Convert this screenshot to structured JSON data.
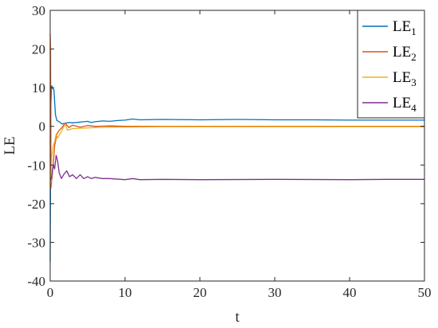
{
  "chart_data": {
    "type": "line",
    "xlabel": "t",
    "ylabel": "LE",
    "xlim": [
      0,
      50
    ],
    "ylim": [
      -40,
      30
    ],
    "xticks": [
      0,
      10,
      20,
      30,
      40,
      50
    ],
    "yticks": [
      30,
      20,
      10,
      0,
      -10,
      -20,
      -30,
      -40
    ],
    "grid": false,
    "legend_position": "top-right",
    "series": [
      {
        "name": "LE",
        "subscript": "1",
        "color": "#0072BD",
        "x": [
          0,
          0.1,
          0.2,
          0.3,
          0.5,
          0.7,
          0.9,
          1.2,
          1.6,
          2.0,
          2.5,
          3,
          4,
          5,
          5.5,
          6,
          7,
          8,
          9,
          10,
          11,
          12,
          15,
          20,
          25,
          30,
          35,
          40,
          45,
          50
        ],
        "y": [
          -35,
          6,
          10.5,
          10,
          9.5,
          3,
          1.5,
          1.2,
          0.6,
          0.8,
          1.0,
          0.9,
          1.1,
          1.3,
          1.0,
          1.2,
          1.4,
          1.3,
          1.5,
          1.6,
          1.9,
          1.7,
          1.8,
          1.7,
          1.8,
          1.7,
          1.7,
          1.6,
          1.6,
          1.6
        ]
      },
      {
        "name": "LE",
        "subscript": "2",
        "color": "#D95319",
        "x": [
          0,
          0.05,
          0.1,
          0.2,
          0.4,
          0.6,
          0.9,
          1.2,
          1.5,
          2.0,
          2.5,
          3,
          4,
          5,
          6,
          8,
          10,
          15,
          20,
          30,
          40,
          50
        ],
        "y": [
          24,
          20,
          -16,
          -14,
          -10,
          -5,
          -2,
          -1,
          -0.5,
          0.8,
          -0.3,
          0.3,
          -0.2,
          0.2,
          0.0,
          0.1,
          0.0,
          0.0,
          0.0,
          0.0,
          0.0,
          0.0
        ]
      },
      {
        "name": "LE",
        "subscript": "3",
        "color": "#EDB120",
        "x": [
          0,
          0.1,
          0.2,
          0.4,
          0.6,
          0.8,
          1.0,
          1.3,
          1.6,
          2.0,
          2.3,
          2.6,
          3,
          4,
          5,
          6,
          8,
          10,
          15,
          20,
          30,
          40,
          50
        ],
        "y": [
          -15,
          -14,
          -8,
          -5,
          -4,
          -2,
          -3,
          -2,
          -1,
          0.6,
          -1,
          -0.8,
          -0.6,
          -0.5,
          -0.4,
          -0.3,
          -0.2,
          -0.2,
          -0.1,
          -0.1,
          -0.1,
          -0.1,
          -0.1
        ]
      },
      {
        "name": "LE",
        "subscript": "4",
        "color": "#7E2F8E",
        "x": [
          0,
          0.2,
          0.4,
          0.6,
          0.8,
          1.0,
          1.2,
          1.5,
          1.8,
          2.2,
          2.6,
          3,
          3.5,
          4,
          4.5,
          5,
          5.5,
          6,
          7,
          8,
          10,
          11,
          12,
          15,
          20,
          30,
          40,
          45,
          50
        ],
        "y": [
          -14,
          -13,
          -10,
          -11,
          -7.5,
          -9,
          -12,
          -13.5,
          -12.5,
          -11.5,
          -13,
          -12.5,
          -13.5,
          -12.5,
          -13.5,
          -13,
          -13.5,
          -13.2,
          -13.5,
          -13.5,
          -13.8,
          -13.5,
          -13.8,
          -13.7,
          -13.8,
          -13.7,
          -13.8,
          -13.7,
          -13.7
        ]
      }
    ]
  }
}
